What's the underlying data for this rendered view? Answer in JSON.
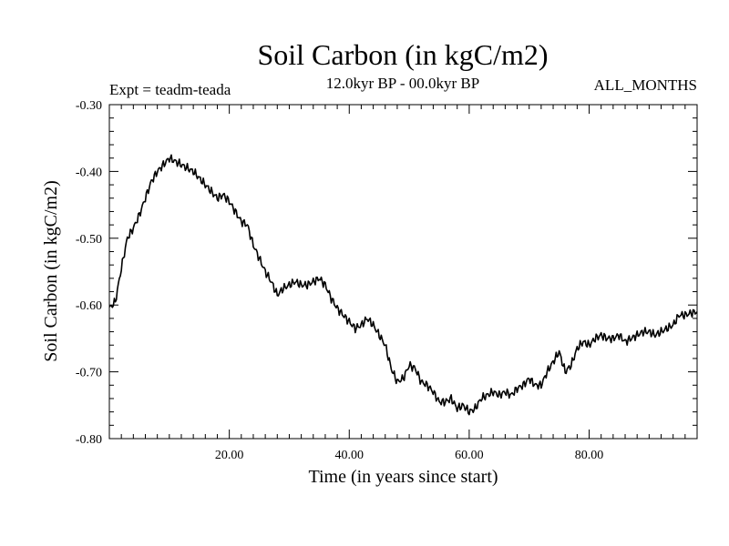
{
  "chart_data": {
    "type": "line",
    "title": "Soil Carbon (in kgC/m2)",
    "subtitle": "12.0kyr BP - 00.0kyr BP",
    "experiment_label": "Expt = teadm-teada",
    "months_label": "ALL_MONTHS",
    "xlabel": "Time (in years since start)",
    "ylabel": "Soil Carbon (in kgC/m2)",
    "xlim": [
      0,
      98
    ],
    "ylim": [
      -0.8,
      -0.3
    ],
    "xticks": [
      20,
      40,
      60,
      80
    ],
    "xtick_labels": [
      "20.00",
      "40.00",
      "60.00",
      "80.00"
    ],
    "yticks": [
      -0.3,
      -0.4,
      -0.5,
      -0.6,
      -0.7,
      -0.8
    ],
    "ytick_labels": [
      "-0.30",
      "-0.40",
      "-0.50",
      "-0.60",
      "-0.70",
      "-0.80"
    ],
    "series": [
      {
        "name": "Soil Carbon",
        "x": [
          0,
          1,
          2,
          3,
          4,
          5,
          6,
          7,
          8,
          9,
          10,
          11,
          12,
          13,
          14,
          15,
          16,
          17,
          18,
          19,
          20,
          21,
          22,
          23,
          24,
          25,
          26,
          27,
          28,
          29,
          30,
          31,
          32,
          33,
          34,
          35,
          36,
          37,
          38,
          39,
          40,
          41,
          42,
          43,
          44,
          45,
          46,
          47,
          48,
          49,
          50,
          51,
          52,
          53,
          54,
          55,
          56,
          57,
          58,
          59,
          60,
          61,
          62,
          63,
          64,
          65,
          66,
          67,
          68,
          69,
          70,
          71,
          72,
          73,
          74,
          75,
          76,
          77,
          78,
          79,
          80,
          81,
          82,
          83,
          84,
          85,
          86,
          87,
          88,
          89,
          90,
          91,
          92,
          93,
          94,
          95,
          96,
          97,
          98
        ],
        "values": [
          -0.605,
          -0.595,
          -0.545,
          -0.5,
          -0.485,
          -0.465,
          -0.44,
          -0.415,
          -0.4,
          -0.39,
          -0.38,
          -0.385,
          -0.39,
          -0.395,
          -0.4,
          -0.41,
          -0.42,
          -0.43,
          -0.44,
          -0.435,
          -0.445,
          -0.46,
          -0.475,
          -0.48,
          -0.51,
          -0.53,
          -0.55,
          -0.565,
          -0.585,
          -0.575,
          -0.57,
          -0.565,
          -0.57,
          -0.57,
          -0.565,
          -0.56,
          -0.57,
          -0.59,
          -0.605,
          -0.615,
          -0.625,
          -0.635,
          -0.63,
          -0.62,
          -0.63,
          -0.645,
          -0.66,
          -0.695,
          -0.715,
          -0.71,
          -0.69,
          -0.695,
          -0.715,
          -0.72,
          -0.73,
          -0.745,
          -0.745,
          -0.74,
          -0.755,
          -0.75,
          -0.76,
          -0.755,
          -0.74,
          -0.735,
          -0.73,
          -0.735,
          -0.73,
          -0.735,
          -0.725,
          -0.72,
          -0.71,
          -0.72,
          -0.72,
          -0.7,
          -0.685,
          -0.67,
          -0.7,
          -0.69,
          -0.665,
          -0.655,
          -0.66,
          -0.65,
          -0.645,
          -0.65,
          -0.65,
          -0.645,
          -0.655,
          -0.65,
          -0.645,
          -0.64,
          -0.64,
          -0.645,
          -0.64,
          -0.635,
          -0.63,
          -0.615,
          -0.615,
          -0.612,
          -0.61
        ]
      }
    ]
  }
}
